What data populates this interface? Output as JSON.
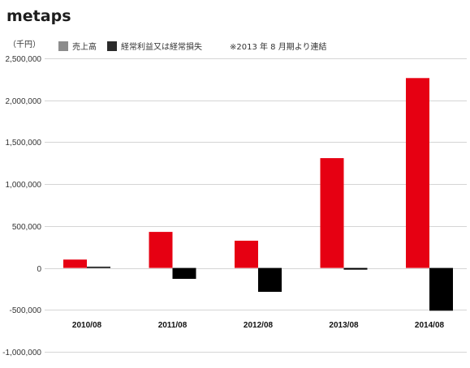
{
  "brand": "metaps",
  "chart_data": {
    "type": "bar",
    "unit_label": "（千円）",
    "note": "※2013 年 8 月期より連結",
    "categories": [
      "2010/08",
      "2011/08",
      "2012/08",
      "2013/08",
      "2014/08"
    ],
    "series": [
      {
        "name": "売上高",
        "color": "#e60012",
        "values": [
          100000,
          430000,
          325000,
          1310000,
          2265000
        ]
      },
      {
        "name": "経常利益又は経常損失",
        "color": "#000000",
        "values": [
          10000,
          -130000,
          -285000,
          -20000,
          -510000
        ]
      }
    ],
    "legend": [
      {
        "label": "売上高",
        "swatch_color": "#8c8c8c"
      },
      {
        "label": "経常利益又は経常損失",
        "swatch_color": "#2b2b2b"
      }
    ],
    "legend_placement": "top",
    "ylim": [
      -1000000,
      2500000
    ],
    "yticks": [
      2500000,
      2000000,
      1500000,
      1000000,
      500000,
      0,
      -500000,
      -1000000
    ],
    "ytick_labels": [
      "2,500,000",
      "2,000,000",
      "1,500,000",
      "1,000,000",
      "500,000",
      "0",
      "-500,000",
      "-1,000,000"
    ],
    "grid": true,
    "title": "",
    "xlabel": "",
    "ylabel": ""
  }
}
